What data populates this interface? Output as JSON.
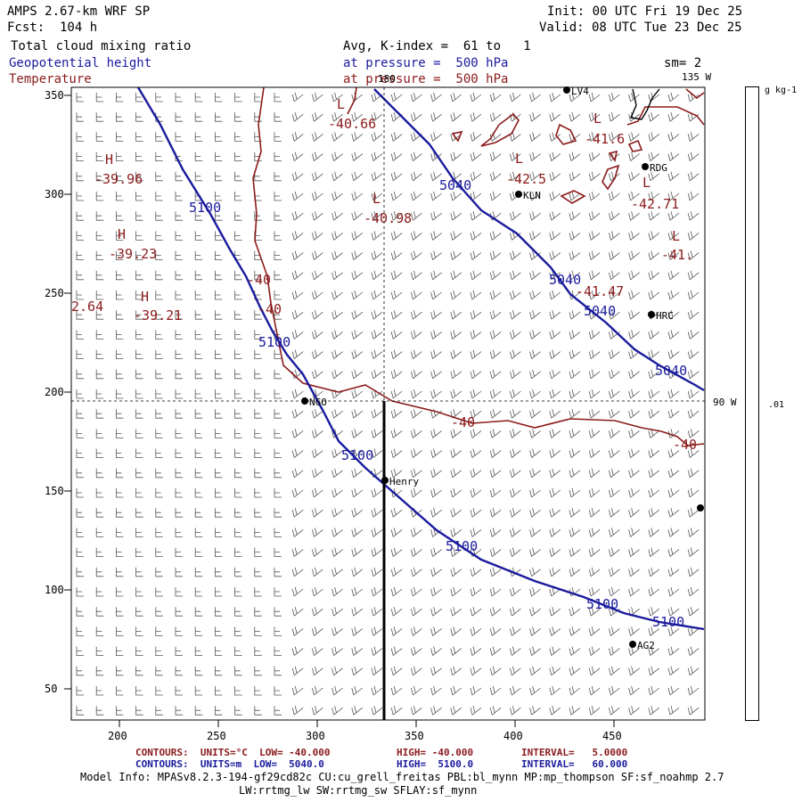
{
  "header": {
    "model": "AMPS 2.67-km WRF SP",
    "forecast": "Fcst:  104 h",
    "init": "Init: 00 UTC Fri 19 Dec 25",
    "valid": "Valid: 08 UTC Tue 23 Dec 25",
    "field1": "Total cloud mixing ratio",
    "field1_desc": "Avg, K-index =  61 to   1",
    "field2": "Geopotential height",
    "field2_desc": "at pressure =  500 hPa",
    "field3": "Temperature",
    "field3_desc": "at pressure =  500 hPa",
    "smoothing": "sm= 2"
  },
  "colorbar": {
    "units": "g kg-1",
    "tick": ".01"
  },
  "map": {
    "x_ticks": [
      "200",
      "250",
      "300",
      "350",
      "400",
      "450"
    ],
    "y_ticks": [
      "350",
      "300",
      "250",
      "200",
      "150",
      "100",
      "50"
    ],
    "meridian_top": "180",
    "meridian_135": "135 W",
    "meridian_90": "90 W",
    "stations": [
      {
        "name": "LV4",
        "x": 636,
        "y": 101
      },
      {
        "name": "RDG",
        "x": 724,
        "y": 187
      },
      {
        "name": "KLN",
        "x": 582,
        "y": 218
      },
      {
        "name": "HRC",
        "x": 731,
        "y": 353
      },
      {
        "name": "NGO",
        "x": 342,
        "y": 450
      },
      {
        "name": "Henry",
        "x": 432,
        "y": 539
      },
      {
        "name": "",
        "x": 786,
        "y": 570
      },
      {
        "name": "AG2",
        "x": 710,
        "y": 723
      }
    ],
    "height_labels": [
      {
        "t": "5100",
        "x": 212,
        "y": 238
      },
      {
        "t": "5100",
        "x": 290,
        "y": 389
      },
      {
        "t": "5100",
        "x": 383,
        "y": 516
      },
      {
        "t": "5100",
        "x": 500,
        "y": 618
      },
      {
        "t": "5100",
        "x": 658,
        "y": 683
      },
      {
        "t": "5100",
        "x": 732,
        "y": 703
      },
      {
        "t": "5040",
        "x": 493,
        "y": 213
      },
      {
        "t": "5040",
        "x": 616,
        "y": 319
      },
      {
        "t": "5040",
        "x": 655,
        "y": 354
      },
      {
        "t": "5040",
        "x": 735,
        "y": 421
      }
    ],
    "temp_labels": [
      {
        "t": "L",
        "x": 378,
        "y": 122
      },
      {
        "t": "-40.66",
        "x": 368,
        "y": 144
      },
      {
        "t": "H",
        "x": 118,
        "y": 184
      },
      {
        "t": "-39.96",
        "x": 106,
        "y": 206
      },
      {
        "t": "L",
        "x": 418,
        "y": 228
      },
      {
        "t": "-40.98",
        "x": 408,
        "y": 250
      },
      {
        "t": "H",
        "x": 132,
        "y": 268
      },
      {
        "t": "-39.23",
        "x": 122,
        "y": 290
      },
      {
        "t": "-40",
        "x": 277,
        "y": 319
      },
      {
        "t": "H",
        "x": 158,
        "y": 338
      },
      {
        "t": "-39.21",
        "x": 150,
        "y": 359
      },
      {
        "t": "2.64",
        "x": 80,
        "y": 349
      },
      {
        "t": "-40",
        "x": 289,
        "y": 352
      },
      {
        "t": "L",
        "x": 666,
        "y": 138
      },
      {
        "t": "-41.6",
        "x": 656,
        "y": 161
      },
      {
        "t": "L",
        "x": 578,
        "y": 183
      },
      {
        "t": "-42.5",
        "x": 568,
        "y": 206
      },
      {
        "t": "L",
        "x": 721,
        "y": 210
      },
      {
        "t": "-42.71",
        "x": 708,
        "y": 234
      },
      {
        "t": "L",
        "x": 754,
        "y": 270
      },
      {
        "t": "-41.",
        "x": 742,
        "y": 291
      },
      {
        "t": "-41.47",
        "x": 646,
        "y": 332
      },
      {
        "t": "-40",
        "x": 506,
        "y": 479
      },
      {
        "t": "-40",
        "x": 755,
        "y": 504
      }
    ]
  },
  "footer": {
    "temp_contours": "CONTOURS:  UNITS=°C  LOW= -40.000",
    "temp_high": "HIGH= -40.000",
    "temp_interval": "INTERVAL=   5.0000",
    "hgt_contours": "CONTOURS:  UNITS=m  LOW=  5040.0",
    "hgt_high": "HIGH=  5100.0",
    "hgt_interval": "INTERVAL=   60.000",
    "model_info": "Model Info: MPASv8.2.3-194-gf29cd82c CU:cu_grell_freitas PBL:bl_mynn MP:mp_thompson SF:sf_noahmp 2.7",
    "model_info2": "LW:rrtmg_lw SW:rrtmg_sw SFLAY:sf_mynn"
  },
  "colors": {
    "height": "#1a1a9e",
    "temperature": "#8b1a1a",
    "coast": "#8b1a1a"
  }
}
